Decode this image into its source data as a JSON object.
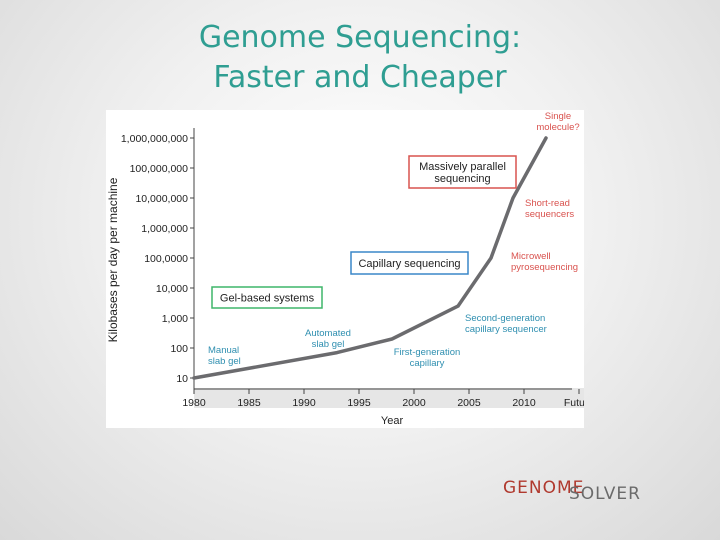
{
  "slide": {
    "title_line1": "Genome Sequencing:",
    "title_line2": "Faster and Cheaper"
  },
  "logo": {
    "part1": "GENOME",
    "part2": "SOLVER"
  },
  "chart_data": {
    "type": "line",
    "xlabel": "Year",
    "ylabel": "Kilobases per day per machine",
    "x_scale": "linear",
    "y_scale": "log",
    "x_ticks": [
      "1980",
      "1985",
      "1990",
      "1995",
      "2000",
      "2005",
      "2010",
      "Future"
    ],
    "y_ticks": [
      "10",
      "100",
      "1,000",
      "10,000",
      "100,0000",
      "1,000,000",
      "10,000,000",
      "100,000,000",
      "1,000,000,000"
    ],
    "grid": false,
    "series": [
      {
        "color": "#6b6b6e",
        "points": [
          {
            "x": 1980,
            "y": 10
          },
          {
            "x": 1993,
            "y": 70
          },
          {
            "x": 1998,
            "y": 200
          },
          {
            "x": 2004,
            "y": 2500
          },
          {
            "x": 2007,
            "y": 100000
          },
          {
            "x": 2009,
            "y": 10000000
          },
          {
            "x": 2012,
            "y": 1000000000
          }
        ]
      }
    ],
    "boxed_labels": [
      {
        "text": "Massively parallel\nsequencing",
        "color": "#d9534f"
      },
      {
        "text": "Capillary sequencing",
        "color": "#3a87c8"
      },
      {
        "text": "Gel-based systems",
        "color": "#3fb66a"
      }
    ],
    "annotations": [
      {
        "text": "Manual\nslab gel",
        "color": "#2f8fb0"
      },
      {
        "text": "Automated\nslab gel",
        "color": "#2f8fb0"
      },
      {
        "text": "First-generation\ncapillary",
        "color": "#2f8fb0"
      },
      {
        "text": "Second-generation\ncapillary sequencer",
        "color": "#2f8fb0"
      },
      {
        "text": "Microwell\npyrosequencing",
        "color": "#d9534f"
      },
      {
        "text": "Short-read\nsequencers",
        "color": "#d9534f"
      },
      {
        "text": "Single\nmolecule?",
        "color": "#d9534f"
      }
    ]
  }
}
